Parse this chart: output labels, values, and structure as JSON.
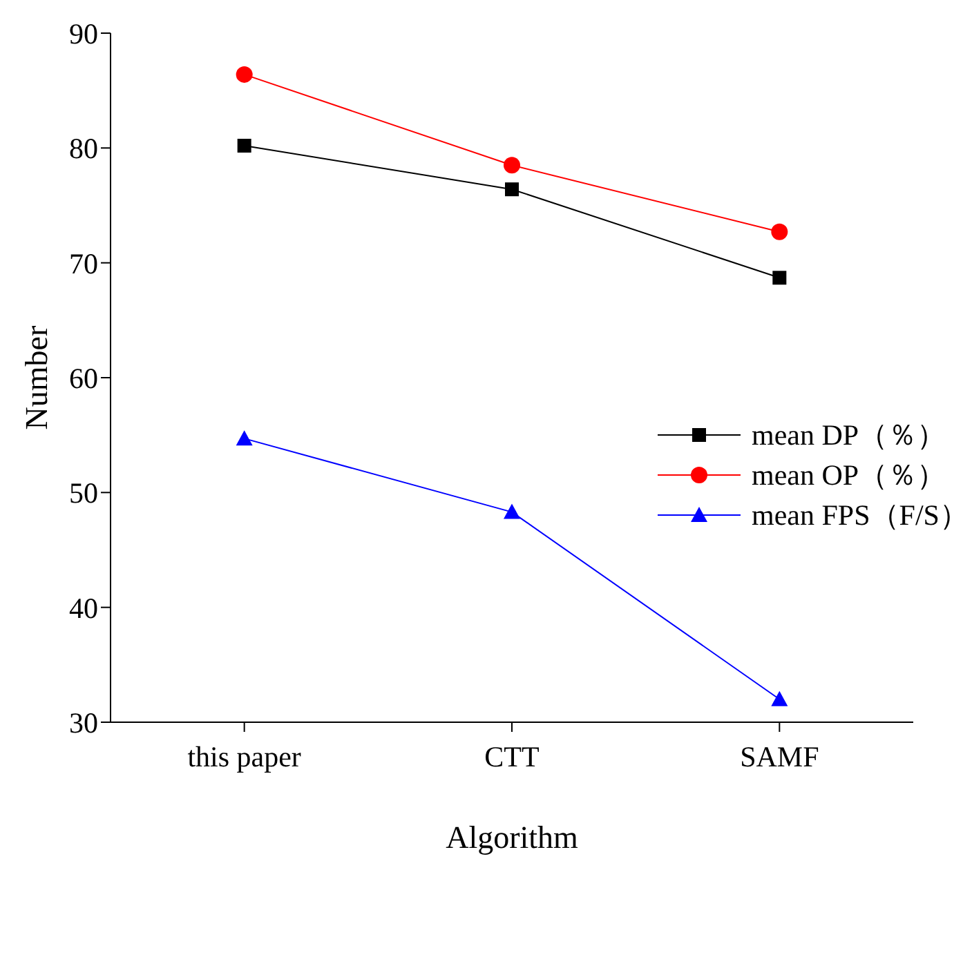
{
  "chart_data": {
    "type": "line",
    "xlabel": "Algorithm",
    "ylabel": "Number",
    "categories": [
      "this paper",
      "CTT",
      "SAMF"
    ],
    "series": [
      {
        "name": "mean DP（％）",
        "color": "#000000",
        "marker": "square",
        "values": [
          80.2,
          76.4,
          68.7
        ]
      },
      {
        "name": "mean OP（％）",
        "color": "#ff0000",
        "marker": "circle",
        "values": [
          86.4,
          78.5,
          72.7
        ]
      },
      {
        "name": "mean FPS（F/S）",
        "color": "#0000ff",
        "marker": "triangle",
        "values": [
          54.7,
          48.3,
          32.0
        ]
      }
    ],
    "ylim": [
      30,
      90
    ],
    "yticks": [
      30,
      40,
      50,
      60,
      70,
      80,
      90
    ],
    "grid": false,
    "legend": "right",
    "line_style": "solid"
  }
}
